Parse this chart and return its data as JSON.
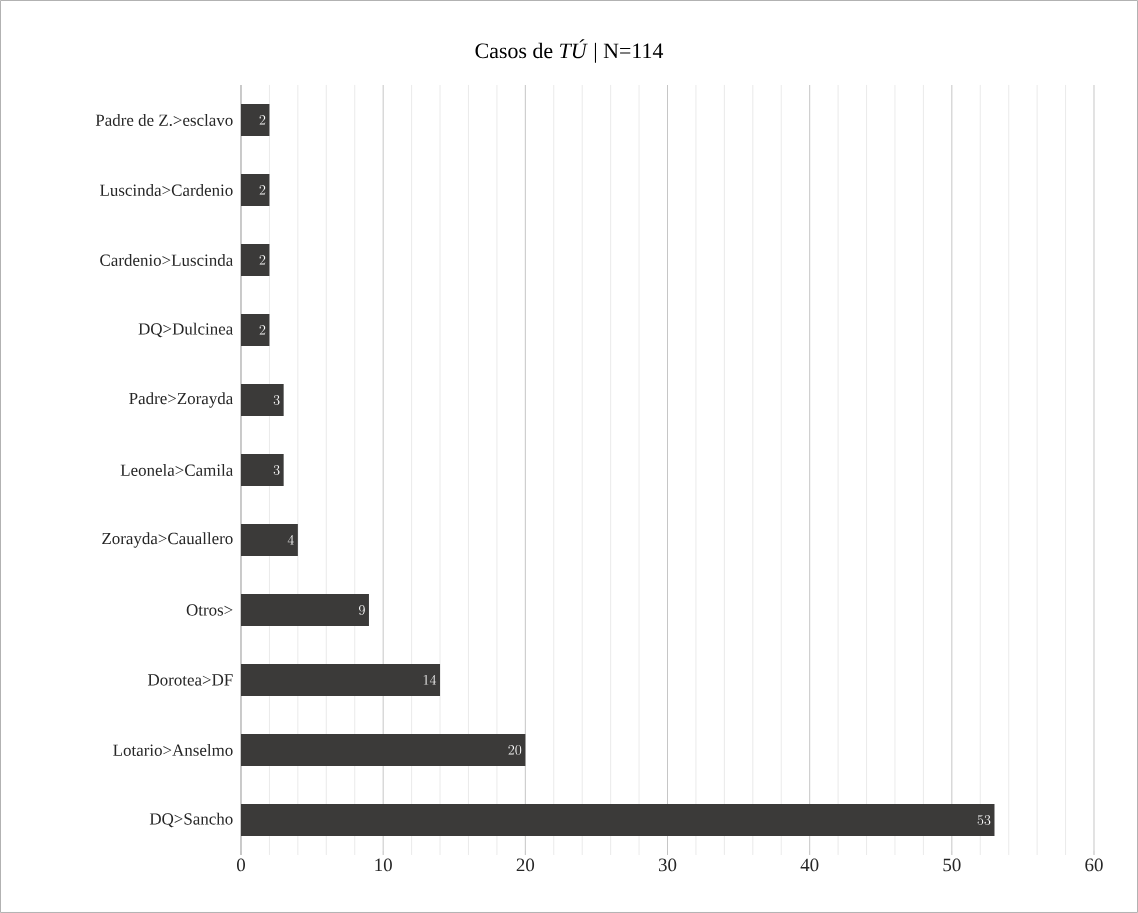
{
  "chart_data": {
    "type": "bar",
    "orientation": "horizontal",
    "title": "Casos de *TÚ*  |  N=114",
    "categories": [
      "Padre de Z.>esclavo",
      "Luscinda>Cardenio",
      "Cardenio>Luscinda",
      "DQ>Dulcinea",
      "Padre>Zorayda",
      "Leonela>Camila",
      "Zorayda>Cauallero",
      "Otros>",
      "Dorotea>DF",
      "Lotario>Anselmo",
      "DQ>Sancho"
    ],
    "values": [
      2,
      2,
      2,
      2,
      3,
      3,
      4,
      9,
      14,
      20,
      53
    ],
    "color": "#3b3a39",
    "xlim": [
      0,
      60
    ],
    "xticks": [
      0,
      10,
      20,
      30,
      40,
      50,
      60
    ],
    "grid": "x",
    "data_labels": true
  }
}
